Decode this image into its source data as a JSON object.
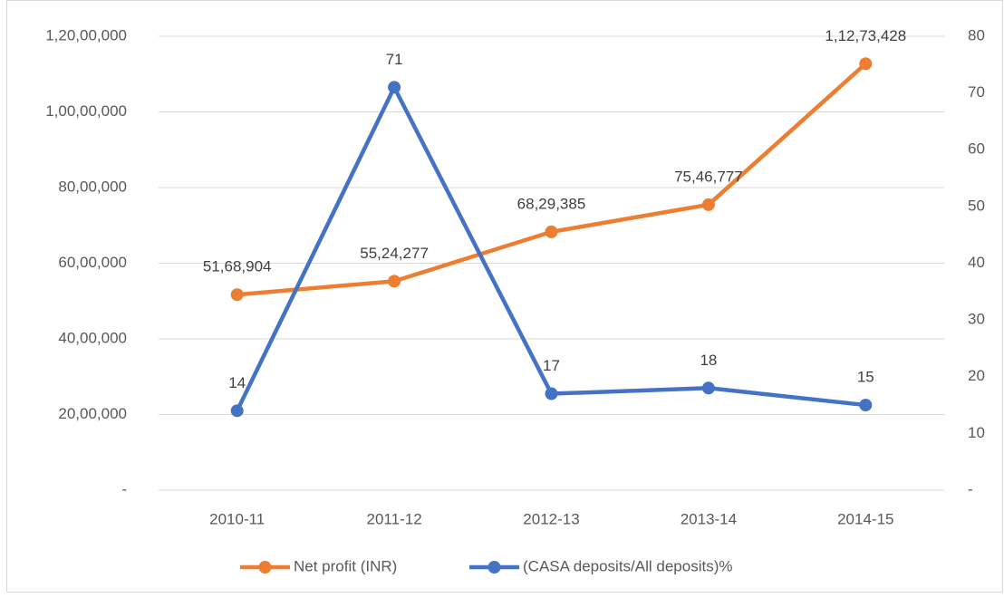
{
  "chart_data": {
    "type": "line",
    "categories": [
      "2010-11",
      "2011-12",
      "2012-13",
      "2013-14",
      "2014-15"
    ],
    "series": [
      {
        "name": "Net profit (INR)",
        "color": "#ed7d31",
        "values": [
          5168904,
          5524277,
          6829385,
          7546777,
          11273428
        ],
        "value_labels": [
          "51,68,904",
          "55,24,277",
          "68,29,385",
          "75,46,777",
          "1,12,73,428"
        ]
      },
      {
        "name": "(CASA deposits/All deposits)%",
        "color": "#4472c4",
        "axis": "y2",
        "values": [
          14,
          71,
          17,
          18,
          15
        ]
      }
    ],
    "ylim": [
      0,
      12000000
    ],
    "yticks": [
      {
        "value": 0,
        "label": "-"
      },
      {
        "value": 2000000,
        "label": "20,00,000"
      },
      {
        "value": 4000000,
        "label": "40,00,000"
      },
      {
        "value": 6000000,
        "label": "60,00,000"
      },
      {
        "value": 8000000,
        "label": "80,00,000"
      },
      {
        "value": 10000000,
        "label": "1,00,00,000"
      },
      {
        "value": 12000000,
        "label": "1,20,00,000"
      }
    ],
    "y2lim": [
      0,
      80
    ],
    "y2ticks": [
      {
        "value": 0,
        "label": "-"
      },
      10,
      20,
      30,
      40,
      50,
      60,
      70,
      80
    ],
    "grid": true,
    "legend": "bottom"
  }
}
